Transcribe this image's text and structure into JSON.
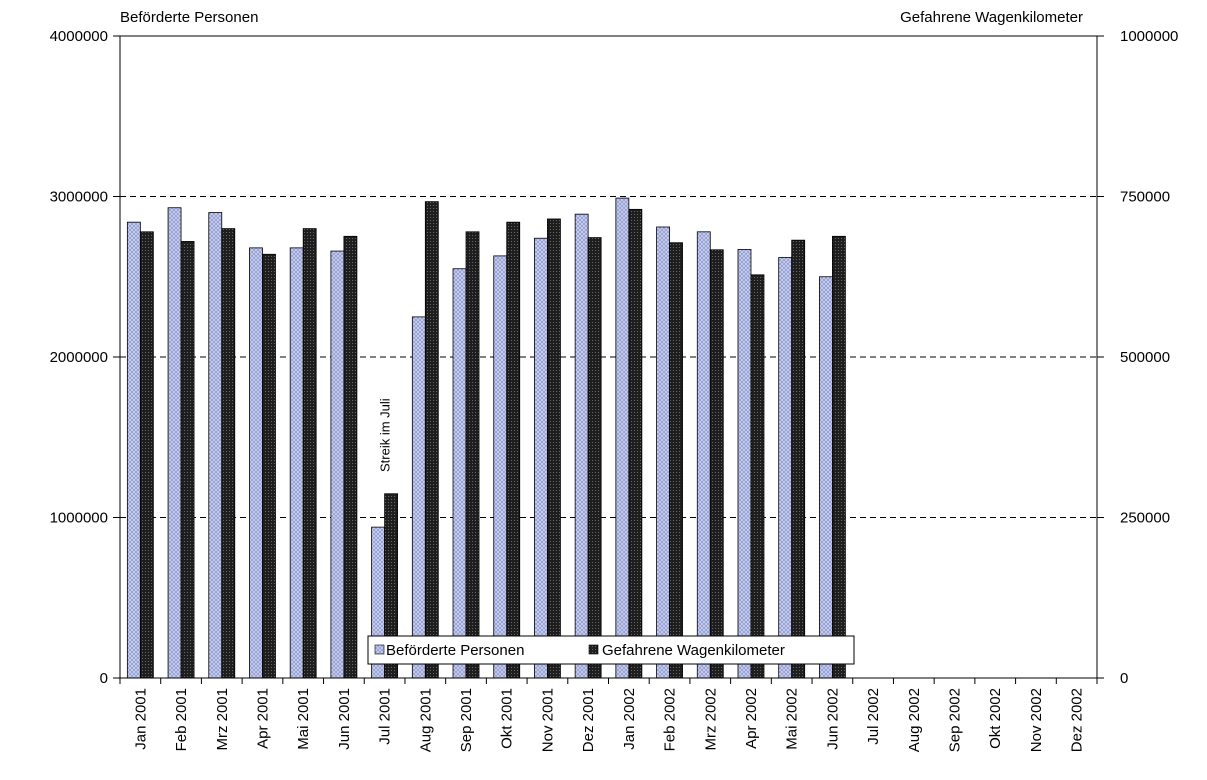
{
  "chart_data": {
    "type": "bar",
    "left_axis_title": "Beförderte Personen",
    "right_axis_title": "Gefahrene Wagenkilometer",
    "categories": [
      "Jan 2001",
      "Feb 2001",
      "Mrz 2001",
      "Apr 2001",
      "Mai 2001",
      "Jun 2001",
      "Jul 2001",
      "Aug 2001",
      "Sep 2001",
      "Okt 2001",
      "Nov 2001",
      "Dez 2001",
      "Jan 2002",
      "Feb 2002",
      "Mrz 2002",
      "Apr 2002",
      "Mai 2002",
      "Jun 2002",
      "Jul 2002",
      "Aug 2002",
      "Sep 2002",
      "Okt 2002",
      "Nov 2002",
      "Dez 2002"
    ],
    "y_left": {
      "min": 0,
      "max": 4000000,
      "ticks": [
        "0",
        "1000000",
        "2000000",
        "3000000",
        "4000000"
      ]
    },
    "y_right": {
      "min": 0,
      "max": 1000000,
      "ticks": [
        "0",
        "250000",
        "500000",
        "750000",
        "1000000"
      ]
    },
    "grid": "dashed horizontal",
    "legend_position": "bottom-center",
    "series": [
      {
        "name": "Beförderte Personen",
        "axis": "left",
        "color": "#b8c4ec",
        "values": [
          2840000,
          2930000,
          2900000,
          2680000,
          2680000,
          2660000,
          940000,
          2250000,
          2550000,
          2630000,
          2740000,
          2890000,
          2990000,
          2810000,
          2780000,
          2670000,
          2620000,
          2500000,
          null,
          null,
          null,
          null,
          null,
          null
        ]
      },
      {
        "name": "Gefahrene Wagenkilometer",
        "axis": "right",
        "color": "#2b2b2b",
        "values": [
          695000,
          680000,
          700000,
          660000,
          700000,
          688000,
          287000,
          742000,
          695000,
          710000,
          715000,
          686000,
          730000,
          678000,
          667000,
          628000,
          682000,
          688000,
          null,
          null,
          null,
          null,
          null,
          null
        ]
      }
    ],
    "annotations": [
      {
        "text": "Streik im Juli",
        "category": "Jul 2001"
      }
    ]
  }
}
